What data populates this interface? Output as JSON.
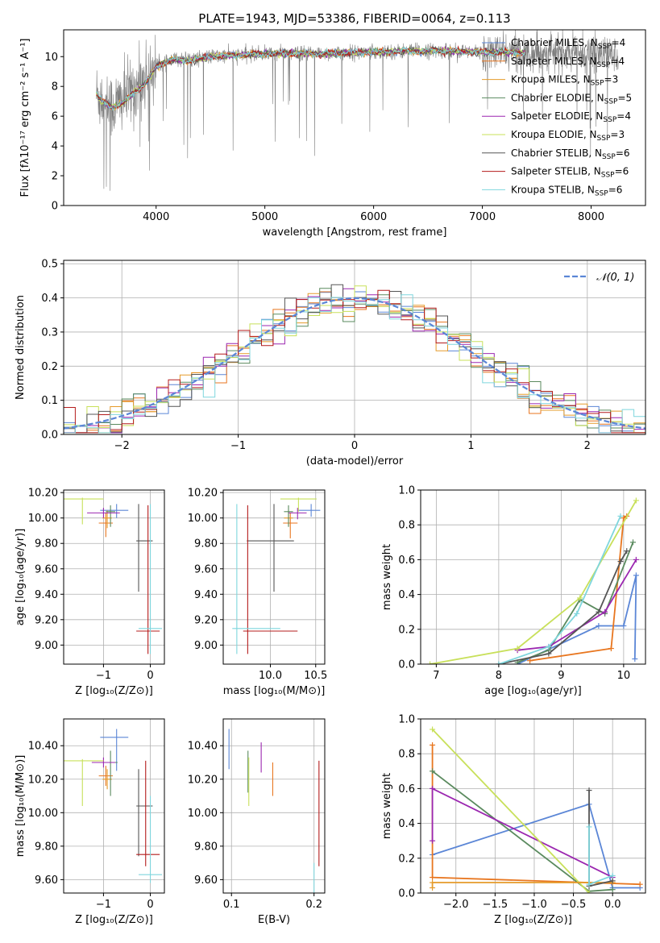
{
  "figure": {
    "title": "PLATE=1943, MJD=53386, FIBERID=0064, z=0.113"
  },
  "model_colors": {
    "Chabrier MILES": "#5b86d6",
    "Salpeter MILES": "#e8761f",
    "Kroupa MILES": "#e59b2a",
    "Chabrier ELODIE": "#5a8a5e",
    "Salpeter ELODIE": "#9b27b0",
    "Kroupa ELODIE": "#c8e05a",
    "Chabrier STELIB": "#555555",
    "Salpeter STELIB": "#b41c1c",
    "Kroupa STELIB": "#7fd6dd",
    "data": "#7f7f7f"
  },
  "chart_data": [
    {
      "id": "spectrum",
      "type": "line",
      "title": "PLATE=1943, MJD=53386, FIBERID=0064, z=0.113",
      "xlabel": "wavelength [Angstrom, rest frame]",
      "ylabel": "Flux [fλ10⁻¹⁷ erg cm⁻² s⁻¹ A⁻¹]",
      "xlim": [
        3150,
        8500
      ],
      "ylim": [
        0,
        11.8
      ],
      "xticks": [
        4000,
        5000,
        6000,
        7000,
        8000
      ],
      "yticks": [
        0,
        2,
        4,
        6,
        8,
        10
      ],
      "grid": false,
      "legend_position": "upper-right",
      "legend": [
        {
          "label": "Chabrier MILES, N_SSP=4",
          "color": "#5b86d6"
        },
        {
          "label": "Salpeter MILES, N_SSP=4",
          "color": "#e8761f"
        },
        {
          "label": "Kroupa MILES, N_SSP=3",
          "color": "#e59b2a"
        },
        {
          "label": "Chabrier ELODIE, N_SSP=5",
          "color": "#5a8a5e"
        },
        {
          "label": "Salpeter ELODIE, N_SSP=4",
          "color": "#9b27b0"
        },
        {
          "label": "Kroupa ELODIE, N_SSP=3",
          "color": "#c8e05a"
        },
        {
          "label": "Chabrier STELIB, N_SSP=6",
          "color": "#555555"
        },
        {
          "label": "Salpeter STELIB, N_SSP=6",
          "color": "#b41c1c"
        },
        {
          "label": "Kroupa STELIB, N_SSP=6",
          "color": "#7fd6dd"
        }
      ],
      "continuum_model": {
        "x": [
          3450,
          3500,
          3600,
          3700,
          3800,
          3900,
          4000,
          4100,
          4200,
          4300,
          4500,
          4800,
          5000,
          5500,
          6000,
          6500,
          7000,
          7400
        ],
        "y": [
          7.5,
          7.0,
          6.6,
          6.9,
          7.6,
          8.2,
          9.3,
          9.7,
          9.8,
          9.7,
          10.0,
          10.1,
          10.2,
          10.2,
          10.3,
          10.4,
          10.3,
          10.3
        ]
      },
      "observed_data": {
        "x": [
          3450,
          3600,
          3800,
          4000,
          4200,
          4500,
          5000,
          5500,
          6000,
          6500,
          7000,
          7500,
          8000,
          8250
        ],
        "y": [
          7.5,
          6.6,
          7.8,
          9.4,
          9.8,
          10.0,
          10.2,
          10.2,
          10.3,
          10.4,
          10.3,
          10.3,
          10.2,
          10.1
        ],
        "noise_sigma_increase_longward_of": 7000
      }
    },
    {
      "id": "residual_histogram",
      "type": "line",
      "xlabel": "(data-model)/error",
      "ylabel": "Normed distribution",
      "xlim": [
        -2.5,
        2.5
      ],
      "ylim": [
        0,
        0.51
      ],
      "xticks": [
        -2,
        -1,
        0,
        1,
        2
      ],
      "yticks": [
        0.0,
        0.1,
        0.2,
        0.3,
        0.4,
        0.5
      ],
      "grid": true,
      "legend_position": "upper-right",
      "legend": [
        {
          "label": "𝒩(0, 1)",
          "color": "#5b86d6",
          "style": "dashed"
        }
      ],
      "bin_width": 0.1,
      "reference_curve": {
        "name": "𝒩(0, 1)",
        "mean": 0,
        "sigma": 1
      }
    },
    {
      "id": "age_vs_Z",
      "type": "scatter",
      "xlabel": "Z [log₁₀(Z/Z⊙)]",
      "ylabel": "age  [log₁₀(age/yr)]",
      "xlim": [
        -1.85,
        0.3
      ],
      "ylim": [
        8.85,
        10.22
      ],
      "xticks": [
        -1,
        0
      ],
      "yticks": [
        9.0,
        9.2,
        9.4,
        9.6,
        9.8,
        10.0,
        10.2
      ],
      "grid": true,
      "errorbars": [
        {
          "model": "Chabrier MILES",
          "x": -0.72,
          "xerr": [
            0.35,
            0.25
          ],
          "y": 10.06,
          "yerr": [
            0.06,
            0.05
          ]
        },
        {
          "model": "Salpeter MILES",
          "x": -0.95,
          "xerr": [
            0.15,
            0.15
          ],
          "y": 9.96,
          "yerr": [
            0.11,
            0.08
          ]
        },
        {
          "model": "Kroupa MILES",
          "x": -0.92,
          "xerr": [
            0.1,
            0.1
          ],
          "y": 10.0,
          "yerr": [
            0.08,
            0.06
          ]
        },
        {
          "model": "Chabrier ELODIE",
          "x": -0.85,
          "xerr": [
            0.1,
            0.1
          ],
          "y": 10.05,
          "yerr": [
            0.12,
            0.05
          ]
        },
        {
          "model": "Salpeter ELODIE",
          "x": -1.0,
          "xerr": [
            0.35,
            0.35
          ],
          "y": 10.04,
          "yerr": [
            0.04,
            0.04
          ]
        },
        {
          "model": "Kroupa ELODIE",
          "x": -1.45,
          "xerr": [
            0.45,
            0.45
          ],
          "y": 10.15,
          "yerr": [
            0.2,
            0.01
          ]
        },
        {
          "model": "Chabrier STELIB",
          "x": -0.25,
          "xerr": [
            0.05,
            0.3
          ],
          "y": 9.82,
          "yerr": [
            0.4,
            0.29
          ]
        },
        {
          "model": "Salpeter STELIB",
          "x": -0.05,
          "xerr": [
            0.25,
            0.25
          ],
          "y": 9.11,
          "yerr": [
            0.18,
            0.99
          ]
        },
        {
          "model": "Kroupa STELIB",
          "x": 0.0,
          "xerr": [
            0.25,
            0.25
          ],
          "y": 9.13,
          "yerr": [
            0.2,
            0.98
          ]
        }
      ]
    },
    {
      "id": "age_vs_mass",
      "type": "scatter",
      "xlabel": "mass [log₁₀(M/M⊙)]",
      "ylabel": "",
      "xlim": [
        9.48,
        10.6
      ],
      "ylim": [
        8.85,
        10.22
      ],
      "xticks": [
        10.0,
        10.5
      ],
      "yticks": [
        9.0,
        9.2,
        9.4,
        9.6,
        9.8,
        10.0,
        10.2
      ],
      "grid": true,
      "errorbars": [
        {
          "model": "Chabrier MILES",
          "x": 10.45,
          "xerr": [
            0.15,
            0.1
          ],
          "y": 10.06,
          "yerr": [
            0.05,
            0.05
          ]
        },
        {
          "model": "Salpeter MILES",
          "x": 10.22,
          "xerr": [
            0.08,
            0.08
          ],
          "y": 9.96,
          "yerr": [
            0.12,
            0.08
          ]
        },
        {
          "model": "Kroupa MILES",
          "x": 10.2,
          "xerr": [
            0.05,
            0.05
          ],
          "y": 10.0,
          "yerr": [
            0.06,
            0.06
          ]
        },
        {
          "model": "Chabrier ELODIE",
          "x": 10.2,
          "xerr": [
            0.05,
            0.05
          ],
          "y": 10.05,
          "yerr": [
            0.12,
            0.05
          ]
        },
        {
          "model": "Salpeter ELODIE",
          "x": 10.3,
          "xerr": [
            0.1,
            0.1
          ],
          "y": 10.04,
          "yerr": [
            0.05,
            0.04
          ]
        },
        {
          "model": "Kroupa ELODIE",
          "x": 10.31,
          "xerr": [
            0.2,
            0.2
          ],
          "y": 10.15,
          "yerr": [
            0.1,
            0.01
          ]
        },
        {
          "model": "Chabrier STELIB",
          "x": 10.04,
          "xerr": [
            0.3,
            0.22
          ],
          "y": 9.82,
          "yerr": [
            0.4,
            0.29
          ]
        },
        {
          "model": "Salpeter STELIB",
          "x": 9.75,
          "xerr": [
            0.05,
            0.55
          ],
          "y": 9.11,
          "yerr": [
            0.18,
            0.99
          ]
        },
        {
          "model": "Kroupa STELIB",
          "x": 9.63,
          "xerr": [
            0.05,
            0.48
          ],
          "y": 9.13,
          "yerr": [
            0.2,
            0.98
          ]
        }
      ]
    },
    {
      "id": "weight_vs_age",
      "type": "line",
      "xlabel": "age  [log₁₀(age/yr)]",
      "ylabel": "mass weight",
      "xlim": [
        6.75,
        10.35
      ],
      "ylim": [
        0,
        1.0
      ],
      "xticks": [
        7,
        8,
        9,
        10
      ],
      "yticks": [
        0.0,
        0.2,
        0.4,
        0.6,
        0.8,
        1.0
      ],
      "grid": true,
      "series": [
        {
          "name": "Chabrier MILES",
          "x": [
            8.3,
            9.6,
            10.0,
            10.2,
            10.18
          ],
          "y": [
            0.0,
            0.22,
            0.22,
            0.51,
            0.03
          ]
        },
        {
          "name": "Salpeter MILES",
          "x": [
            8.5,
            9.8,
            10.0,
            10.05
          ],
          "y": [
            0.02,
            0.09,
            0.84,
            0.85
          ]
        },
        {
          "name": "Chabrier ELODIE",
          "x": [
            8.3,
            8.8,
            9.3,
            9.7,
            10.15
          ],
          "y": [
            0.01,
            0.08,
            0.37,
            0.29,
            0.7
          ]
        },
        {
          "name": "Salpeter ELODIE",
          "x": [
            8.3,
            8.8,
            9.7,
            10.2
          ],
          "y": [
            0.08,
            0.1,
            0.3,
            0.6
          ]
        },
        {
          "name": "Kroupa ELODIE",
          "x": [
            6.9,
            8.3,
            9.3,
            10.2
          ],
          "y": [
            0.0,
            0.09,
            0.38,
            0.94
          ]
        },
        {
          "name": "Chabrier STELIB",
          "x": [
            8.0,
            8.8,
            9.6,
            9.95,
            10.05
          ],
          "y": [
            0.0,
            0.06,
            0.3,
            0.59,
            0.65
          ]
        },
        {
          "name": "Kroupa STELIB",
          "x": [
            8.0,
            8.8,
            9.25,
            9.95
          ],
          "y": [
            0.0,
            0.1,
            0.29,
            0.85
          ]
        }
      ]
    },
    {
      "id": "mass_vs_Z",
      "type": "scatter",
      "xlabel": "Z [log₁₀(Z/Z⊙)]",
      "ylabel": "mass [log₁₀(M/M⊙)]",
      "xlim": [
        -1.85,
        0.3
      ],
      "ylim": [
        9.52,
        10.56
      ],
      "xticks": [
        -1,
        0
      ],
      "yticks": [
        9.6,
        9.8,
        10.0,
        10.2,
        10.4
      ],
      "grid": true,
      "errorbars": [
        {
          "model": "Chabrier MILES",
          "x": -0.72,
          "xerr": [
            0.35,
            0.25
          ],
          "y": 10.45,
          "yerr": [
            0.2,
            0.05
          ]
        },
        {
          "model": "Salpeter MILES",
          "x": -0.95,
          "xerr": [
            0.15,
            0.15
          ],
          "y": 10.22,
          "yerr": [
            0.06,
            0.06
          ]
        },
        {
          "model": "Kroupa MILES",
          "x": -0.92,
          "xerr": [
            0.1,
            0.1
          ],
          "y": 10.2,
          "yerr": [
            0.06,
            0.06
          ]
        },
        {
          "model": "Chabrier ELODIE",
          "x": -0.85,
          "xerr": [
            0.15,
            0.15
          ],
          "y": 10.3,
          "yerr": [
            0.2,
            0.07
          ]
        },
        {
          "model": "Salpeter ELODIE",
          "x": -1.0,
          "xerr": [
            0.25,
            0.25
          ],
          "y": 10.3,
          "yerr": [
            0.03,
            0.03
          ]
        },
        {
          "model": "Kroupa ELODIE",
          "x": -1.45,
          "xerr": [
            0.45,
            0.45
          ],
          "y": 10.31,
          "yerr": [
            0.27,
            0.01
          ]
        },
        {
          "model": "Chabrier STELIB",
          "x": -0.25,
          "xerr": [
            0.05,
            0.3
          ],
          "y": 10.04,
          "yerr": [
            0.3,
            0.22
          ]
        },
        {
          "model": "Salpeter STELIB",
          "x": -0.1,
          "xerr": [
            0.2,
            0.3
          ],
          "y": 9.75,
          "yerr": [
            0.07,
            0.56
          ]
        },
        {
          "model": "Kroupa STELIB",
          "x": 0.0,
          "xerr": [
            0.25,
            0.25
          ],
          "y": 9.63,
          "yerr": [
            0.05,
            0.47
          ]
        }
      ]
    },
    {
      "id": "mass_vs_EBV",
      "type": "scatter",
      "xlabel": "E(B-V)",
      "ylabel": "",
      "xlim": [
        0.09,
        0.213
      ],
      "ylim": [
        9.52,
        10.56
      ],
      "xticks": [
        0.1,
        0.2
      ],
      "yticks": [
        9.6,
        9.8,
        10.0,
        10.2,
        10.4
      ],
      "grid": true,
      "vertical_bars": [
        {
          "model": "Chabrier MILES",
          "x": 0.097,
          "y": [
            10.26,
            10.5
          ]
        },
        {
          "model": "Salpeter MILES",
          "x": 0.15,
          "y": [
            10.1,
            10.3
          ]
        },
        {
          "model": "Salpeter ELODIE",
          "x": 0.136,
          "y": [
            10.24,
            10.42
          ]
        },
        {
          "model": "Chabrier ELODIE",
          "x": 0.12,
          "y": [
            10.12,
            10.37
          ]
        },
        {
          "model": "Kroupa ELODIE",
          "x": 0.121,
          "y": [
            10.04,
            10.33
          ]
        },
        {
          "model": "Salpeter STELIB",
          "x": 0.206,
          "y": [
            9.68,
            10.31
          ]
        },
        {
          "model": "Kroupa STELIB",
          "x": 0.2,
          "y": [
            9.52,
            9.7
          ]
        }
      ]
    },
    {
      "id": "weight_vs_Z",
      "type": "line",
      "xlabel": "Z [log₁₀(Z/Z⊙)]",
      "ylabel": "mass weight",
      "xlim": [
        -2.45,
        0.42
      ],
      "ylim": [
        0,
        1.0
      ],
      "xticks": [
        -2.0,
        -1.5,
        -1.0,
        -0.5,
        0.0
      ],
      "yticks": [
        0.0,
        0.2,
        0.4,
        0.6,
        0.8,
        1.0
      ],
      "grid": true,
      "series": [
        {
          "name": "Chabrier MILES",
          "x": [
            -2.3,
            -0.3,
            0.0,
            0.35
          ],
          "y": [
            0.22,
            0.51,
            0.03,
            0.03
          ]
        },
        {
          "name": "Salpeter MILES",
          "x": [
            -2.3,
            -2.3,
            0.35
          ],
          "y": [
            0.85,
            0.09,
            0.05
          ]
        },
        {
          "name": "Chabrier ELODIE",
          "x": [
            -2.3,
            -0.3,
            0.0
          ],
          "y": [
            0.7,
            0.01,
            0.02
          ]
        },
        {
          "name": "Salpeter ELODIE",
          "x": [
            -2.3,
            -2.3,
            0.0
          ],
          "y": [
            0.3,
            0.6,
            0.09
          ]
        },
        {
          "name": "Kroupa ELODIE",
          "x": [
            -2.3,
            -0.3
          ],
          "y": [
            0.94,
            0.0
          ]
        },
        {
          "name": "Kroupa MILES",
          "x": [
            -2.3,
            -2.3,
            0.0
          ],
          "y": [
            0.03,
            0.06,
            0.06
          ]
        },
        {
          "name": "Chabrier STELIB",
          "x": [
            -0.3,
            -0.3,
            0.0
          ],
          "y": [
            0.59,
            0.04,
            0.07
          ]
        },
        {
          "name": "Kroupa STELIB",
          "x": [
            -0.3,
            -0.3,
            0.0
          ],
          "y": [
            0.38,
            0.05,
            0.1
          ]
        }
      ]
    }
  ]
}
